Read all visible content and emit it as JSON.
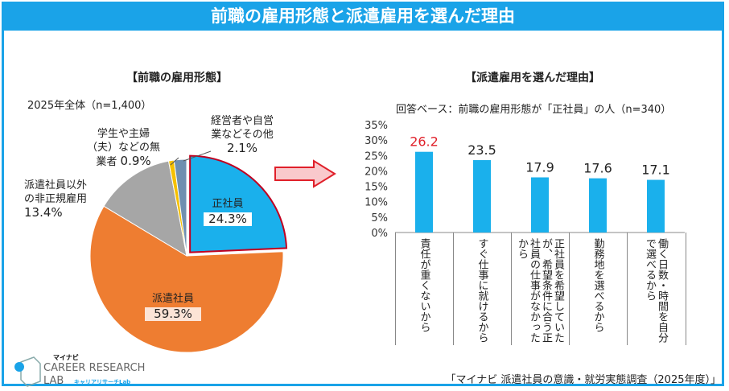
{
  "title": "前職の雇用形態と派遣雇用を選んだ理由",
  "chart_data": [
    {
      "type": "pie",
      "title": "【前職の雇用形態】",
      "subtitle": "2025年全体（n=1,400）",
      "slices": [
        {
          "label": "正社員",
          "value": 24.3,
          "display": "24.3%",
          "color": "#1ab0ec",
          "exploded": true
        },
        {
          "label": "派遣社員",
          "value": 59.3,
          "display": "59.3%",
          "color": "#ee7d31"
        },
        {
          "label": "派遣社員以外の非正規雇用",
          "value": 13.4,
          "display": "13.4%",
          "color": "#a6a6a6"
        },
        {
          "label": "学生や主婦（夫）などの無業者",
          "value": 0.9,
          "display": "0.9%",
          "color": "#f5c000"
        },
        {
          "label": "経営者や自営業などその他",
          "value": 2.1,
          "display": "2.1%",
          "color": "#6f8fb0"
        }
      ],
      "labels": {
        "sei": "正社員",
        "haken": "派遣社員",
        "hiseiki1": "派遣社員以外",
        "hiseiki2": "の非正規雇用",
        "mugyo1": "学生や主婦",
        "mugyo2": "（夫）などの無",
        "mugyo3": "業者",
        "sonota1": "経営者や自営",
        "sonota2": "業などその他"
      }
    },
    {
      "type": "bar",
      "title": "【派遣雇用を選んだ理由】",
      "subtitle": "回答ベース：前職の雇用形態が「正社員」の人（n=340）",
      "categories": [
        "責任が重くないから",
        "すぐ仕事に就けるから",
        "正社員を希望していたが、希望条件に合う正社員の仕事がなかったから",
        "勤務地を選べるから",
        "働く日数・時間を自分で選べるから"
      ],
      "values": [
        26.2,
        23.5,
        17.9,
        17.6,
        17.1
      ],
      "value_labels": [
        "26.2",
        "23.5",
        "17.9",
        "17.6",
        "17.1"
      ],
      "highlight_color": "#e0202a",
      "bar_color": "#1ab0ec",
      "ylim": [
        0,
        35
      ],
      "yticks": [
        "0%",
        "5%",
        "10%",
        "15%",
        "20%",
        "25%",
        "30%",
        "35%"
      ]
    }
  ],
  "source": "「マイナビ 派遣社員の意識・就労実態調査（2025年度）」",
  "logo": {
    "brand": "マイナビ",
    "line1": "CAREER RESEARCH",
    "line2": "LAB",
    "sub": "キャリアリサーチLab"
  }
}
